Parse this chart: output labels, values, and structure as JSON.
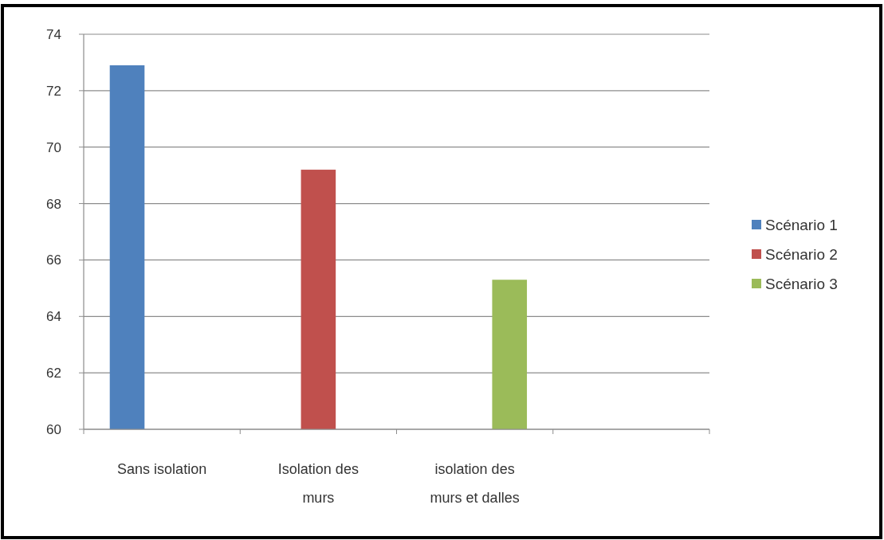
{
  "chart_data": {
    "type": "bar",
    "categories": [
      "Sans isolation",
      "Isolation des murs",
      "isolation des murs et dalles",
      null
    ],
    "series": [
      {
        "name": "Scénario 1",
        "color": "#4f81bd",
        "values": [
          72.9,
          null,
          null,
          null
        ]
      },
      {
        "name": "Scénario 2",
        "color": "#c0504d",
        "values": [
          null,
          69.2,
          null,
          null
        ]
      },
      {
        "name": "Scénario 3",
        "color": "#9bbb59",
        "values": [
          null,
          null,
          65.3,
          null
        ]
      }
    ],
    "ylim": [
      60,
      74
    ],
    "yticks": [
      60,
      62,
      64,
      66,
      68,
      70,
      72,
      74
    ],
    "grid": "y",
    "legend": "right"
  }
}
